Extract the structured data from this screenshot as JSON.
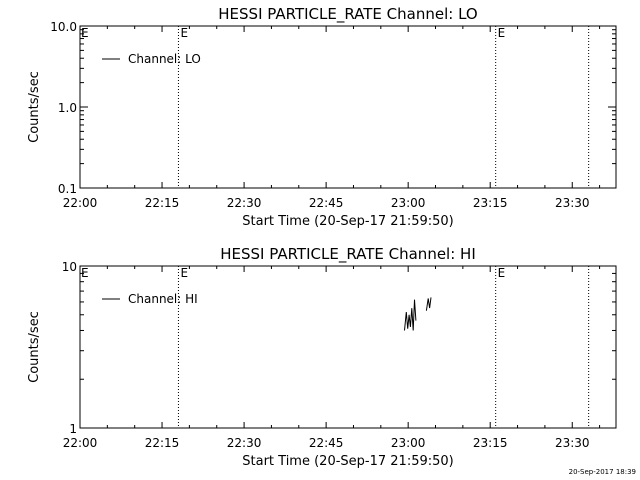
{
  "footer": {
    "timestamp": "20-Sep-2017 18:39"
  },
  "chart_data": [
    {
      "type": "line",
      "title": "HESSI PARTICLE_RATE Channel: LO",
      "xlabel": "Start Time (20-Sep-17 21:59:50)",
      "ylabel": "Counts/sec",
      "yscale": "log",
      "xlim": [
        "22:00",
        "23:38"
      ],
      "ylim": [
        0.1,
        10.0
      ],
      "x_ticks": [
        "22:00",
        "22:15",
        "22:30",
        "22:45",
        "23:00",
        "23:15",
        "23:30"
      ],
      "y_ticks": [
        {
          "value": 0.1,
          "label": "0.1"
        },
        {
          "value": 1.0,
          "label": "1.0"
        },
        {
          "value": 10.0,
          "label": "10.0"
        }
      ],
      "legend": {
        "position": "top-left",
        "entries": [
          "Channel: LO"
        ]
      },
      "markers": [
        {
          "time": "22:18",
          "label": "E"
        },
        {
          "time": "23:16",
          "label": "E"
        },
        {
          "time": "23:33",
          "label": ""
        }
      ],
      "series": [
        {
          "name": "Channel: LO",
          "segments": []
        }
      ]
    },
    {
      "type": "line",
      "title": "HESSI PARTICLE_RATE Channel: HI",
      "xlabel": "Start Time (20-Sep-17 21:59:50)",
      "ylabel": "Counts/sec",
      "yscale": "log",
      "xlim": [
        "22:00",
        "23:38"
      ],
      "ylim": [
        1,
        10
      ],
      "x_ticks": [
        "22:00",
        "22:15",
        "22:30",
        "22:45",
        "23:00",
        "23:15",
        "23:30"
      ],
      "y_ticks": [
        {
          "value": 1,
          "label": "1"
        },
        {
          "value": 10,
          "label": "10"
        }
      ],
      "legend": {
        "position": "top-left",
        "entries": [
          "Channel: HI"
        ]
      },
      "markers": [
        {
          "time": "22:18",
          "label": "E"
        },
        {
          "time": "23:16",
          "label": "E"
        },
        {
          "time": "23:33",
          "label": ""
        }
      ],
      "series": [
        {
          "name": "Channel: HI",
          "segments": [
            [
              {
                "x": "22:59:20",
                "y": 4.0
              },
              {
                "x": "22:59:40",
                "y": 5.2
              },
              {
                "x": "22:59:55",
                "y": 4.1
              },
              {
                "x": "23:00:10",
                "y": 5.0
              },
              {
                "x": "23:00:25",
                "y": 4.2
              },
              {
                "x": "23:00:40",
                "y": 5.5
              },
              {
                "x": "23:00:55",
                "y": 4.0
              },
              {
                "x": "23:01:10",
                "y": 6.2
              },
              {
                "x": "23:01:25",
                "y": 4.6
              }
            ],
            [
              {
                "x": "23:03:20",
                "y": 5.3
              },
              {
                "x": "23:03:40",
                "y": 6.3
              },
              {
                "x": "23:03:55",
                "y": 5.5
              },
              {
                "x": "23:04:10",
                "y": 6.4
              }
            ]
          ]
        }
      ]
    }
  ]
}
